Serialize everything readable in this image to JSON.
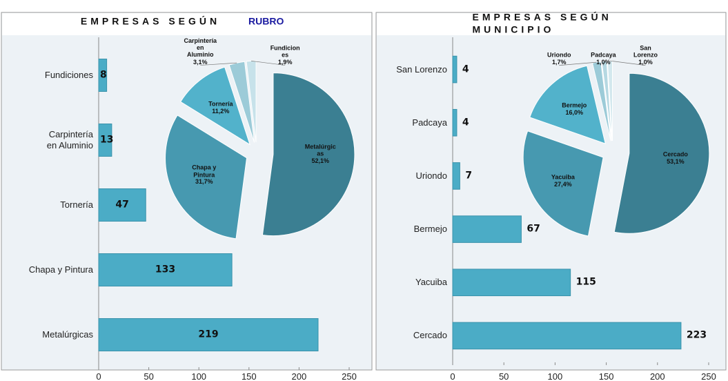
{
  "chart_data": [
    {
      "type": "bar",
      "title": "EMPRESAS SEGÚN",
      "title_suffix": "RUBRO",
      "categories": [
        "Fundiciones",
        "Carpintería\nen Aluminio",
        "Tornería",
        "Chapa y Pintura",
        "Metalúrgicas"
      ],
      "values": [
        8,
        13,
        47,
        133,
        219
      ],
      "color": "#4bacc6",
      "xlim": [
        0,
        250
      ],
      "xticks": [
        0,
        50,
        100,
        150,
        200,
        250
      ],
      "inset": {
        "type": "pie",
        "categories": [
          "Metalúrgic\nas",
          "Chapa y\nPintura",
          "Tornería",
          "Carpintería\nen\nAluminio",
          "Fundicion\nes"
        ],
        "values": [
          52.1,
          31.7,
          11.2,
          3.1,
          1.9
        ],
        "value_labels": [
          "52,1%",
          "31,7%",
          "11,2%",
          "3,1%",
          "1,9%"
        ],
        "colors": [
          "#3b7f92",
          "#4799b0",
          "#52b2cb",
          "#9ccbd8",
          "#c7e2ea"
        ]
      }
    },
    {
      "type": "bar",
      "title": "EMPRESAS SEGÚN MUNICIPIO",
      "categories": [
        "San Lorenzo",
        "Padcaya",
        "Uriondo",
        "Bermejo",
        "Yacuiba",
        "Cercado"
      ],
      "values": [
        4,
        4,
        7,
        67,
        115,
        223
      ],
      "color": "#4bacc6",
      "xlim": [
        0,
        250
      ],
      "xticks": [
        0,
        50,
        100,
        150,
        200,
        250
      ],
      "inset": {
        "type": "pie",
        "categories": [
          "Cercado",
          "Yacuiba",
          "Bermejo",
          "Uriondo",
          "Padcaya",
          "San\nLorenzo"
        ],
        "values": [
          53.1,
          27.4,
          16.0,
          1.7,
          1.0,
          1.0
        ],
        "value_labels": [
          "53,1%",
          "27,4%",
          "16,0%",
          "1,7%",
          "1,0%",
          "1,0%"
        ],
        "colors": [
          "#3b7f92",
          "#4799b0",
          "#52b2cb",
          "#9ccbd8",
          "#b5d8e2",
          "#d3e8ee"
        ]
      }
    }
  ]
}
